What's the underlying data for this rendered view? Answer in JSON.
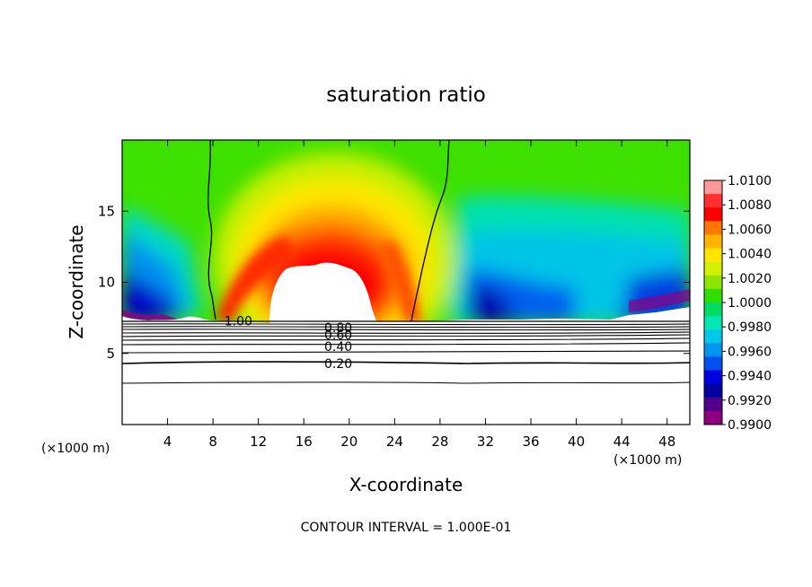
{
  "chart_data": {
    "type": "heatmap",
    "title": "saturation ratio",
    "xlabel": "X-coordinate",
    "ylabel": "Z-coordinate",
    "x_unit_left": "(×1000 m)",
    "x_unit_right": "(×1000 m)",
    "xlim": [
      0,
      50
    ],
    "ylim": [
      0,
      20
    ],
    "xticks": [
      4,
      8,
      12,
      16,
      20,
      24,
      28,
      32,
      36,
      40,
      44,
      48
    ],
    "yticks": [
      5,
      10,
      15
    ],
    "footer": "CONTOUR INTERVAL = 1.000E-01",
    "colorbar": {
      "min": 0.99,
      "max": 1.01,
      "labels": [
        "1.0100",
        "1.0080",
        "1.0060",
        "1.0040",
        "1.0020",
        "1.0000",
        "0.9980",
        "0.9960",
        "0.9940",
        "0.9920",
        "0.9900"
      ],
      "colors": [
        "#ff9999",
        "#ff3030",
        "#ff0000",
        "#ff7800",
        "#ffb400",
        "#ffe600",
        "#d2f000",
        "#8ce600",
        "#32dc00",
        "#00dc64",
        "#00e6b4",
        "#00c8e6",
        "#0096f0",
        "#0050f0",
        "#0000dc",
        "#0000a0",
        "#50008c",
        "#8c0080"
      ]
    },
    "contour_labels": [
      {
        "text": "1.00",
        "x": 9.0,
        "z": 7.3
      },
      {
        "text": "0.80",
        "x": 17.8,
        "z": 6.8
      },
      {
        "text": "0.60",
        "x": 17.8,
        "z": 6.3
      },
      {
        "text": "0.40",
        "x": 17.8,
        "z": 5.5
      },
      {
        "text": "0.20",
        "x": 17.8,
        "z": 4.3
      }
    ]
  }
}
